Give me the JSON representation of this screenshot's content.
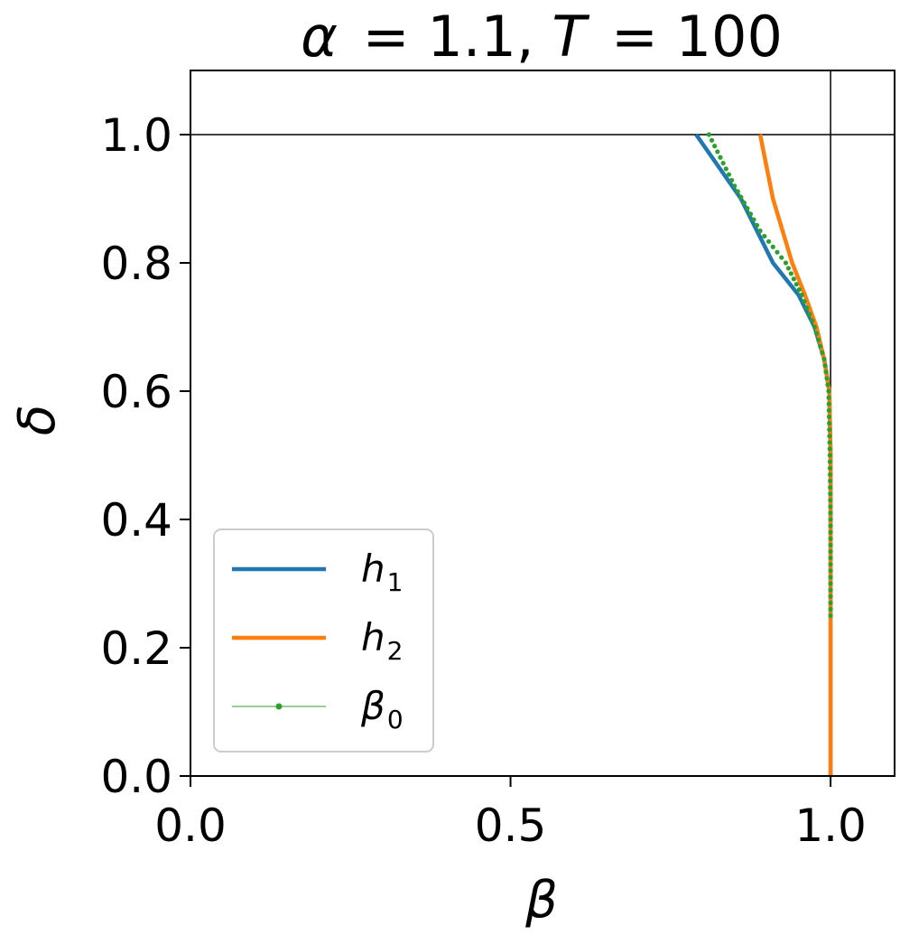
{
  "chart_data": {
    "type": "line",
    "title": {
      "alpha_symbol": "α",
      "alpha_value": "= 1.1",
      "T_symbol": "T",
      "T_value": "= 100"
    },
    "xlabel": "β",
    "ylabel": "δ",
    "xlim": [
      0.0,
      1.1
    ],
    "ylim": [
      0.0,
      1.1
    ],
    "xticks": [
      0.0,
      0.5,
      1.0
    ],
    "xtick_labels": [
      "0.0",
      "0.5",
      "1.0"
    ],
    "yticks": [
      0.0,
      0.2,
      0.4,
      0.6,
      0.8,
      1.0
    ],
    "ytick_labels": [
      "0.0",
      "0.2",
      "0.4",
      "0.6",
      "0.8",
      "1.0"
    ],
    "grid": false,
    "reference_lines": {
      "horizontal_y": 1.0,
      "vertical_x": 1.0
    },
    "legend": {
      "placement": "lower-left",
      "entries": [
        {
          "base": "h",
          "sub": "1"
        },
        {
          "base": "h",
          "sub": "2"
        },
        {
          "base": "β",
          "sub": "0"
        }
      ]
    },
    "series": [
      {
        "name": "h1",
        "color": "#1f77b4",
        "style": "solid",
        "x": [
          1.0,
          1.0,
          1.0,
          1.0,
          0.998,
          0.99,
          0.975,
          0.95,
          0.91,
          0.86,
          0.79
        ],
        "y": [
          0.0,
          0.2,
          0.4,
          0.5,
          0.6,
          0.65,
          0.7,
          0.75,
          0.8,
          0.9,
          1.0
        ]
      },
      {
        "name": "h2",
        "color": "#ff7f0e",
        "style": "solid",
        "x": [
          1.0,
          1.0,
          1.0,
          1.0,
          0.998,
          0.99,
          0.978,
          0.96,
          0.94,
          0.91,
          0.89
        ],
        "y": [
          0.0,
          0.2,
          0.4,
          0.5,
          0.6,
          0.65,
          0.7,
          0.75,
          0.8,
          0.9,
          1.0
        ]
      },
      {
        "name": "β0",
        "color": "#2ca02c",
        "style": "dotted-markers",
        "x": [
          1.0,
          1.0,
          0.999,
          0.997,
          0.99,
          0.975,
          0.955,
          0.93,
          0.89,
          0.85,
          0.81
        ],
        "y": [
          0.25,
          0.4,
          0.5,
          0.6,
          0.65,
          0.7,
          0.75,
          0.8,
          0.85,
          0.92,
          1.0
        ]
      }
    ]
  }
}
